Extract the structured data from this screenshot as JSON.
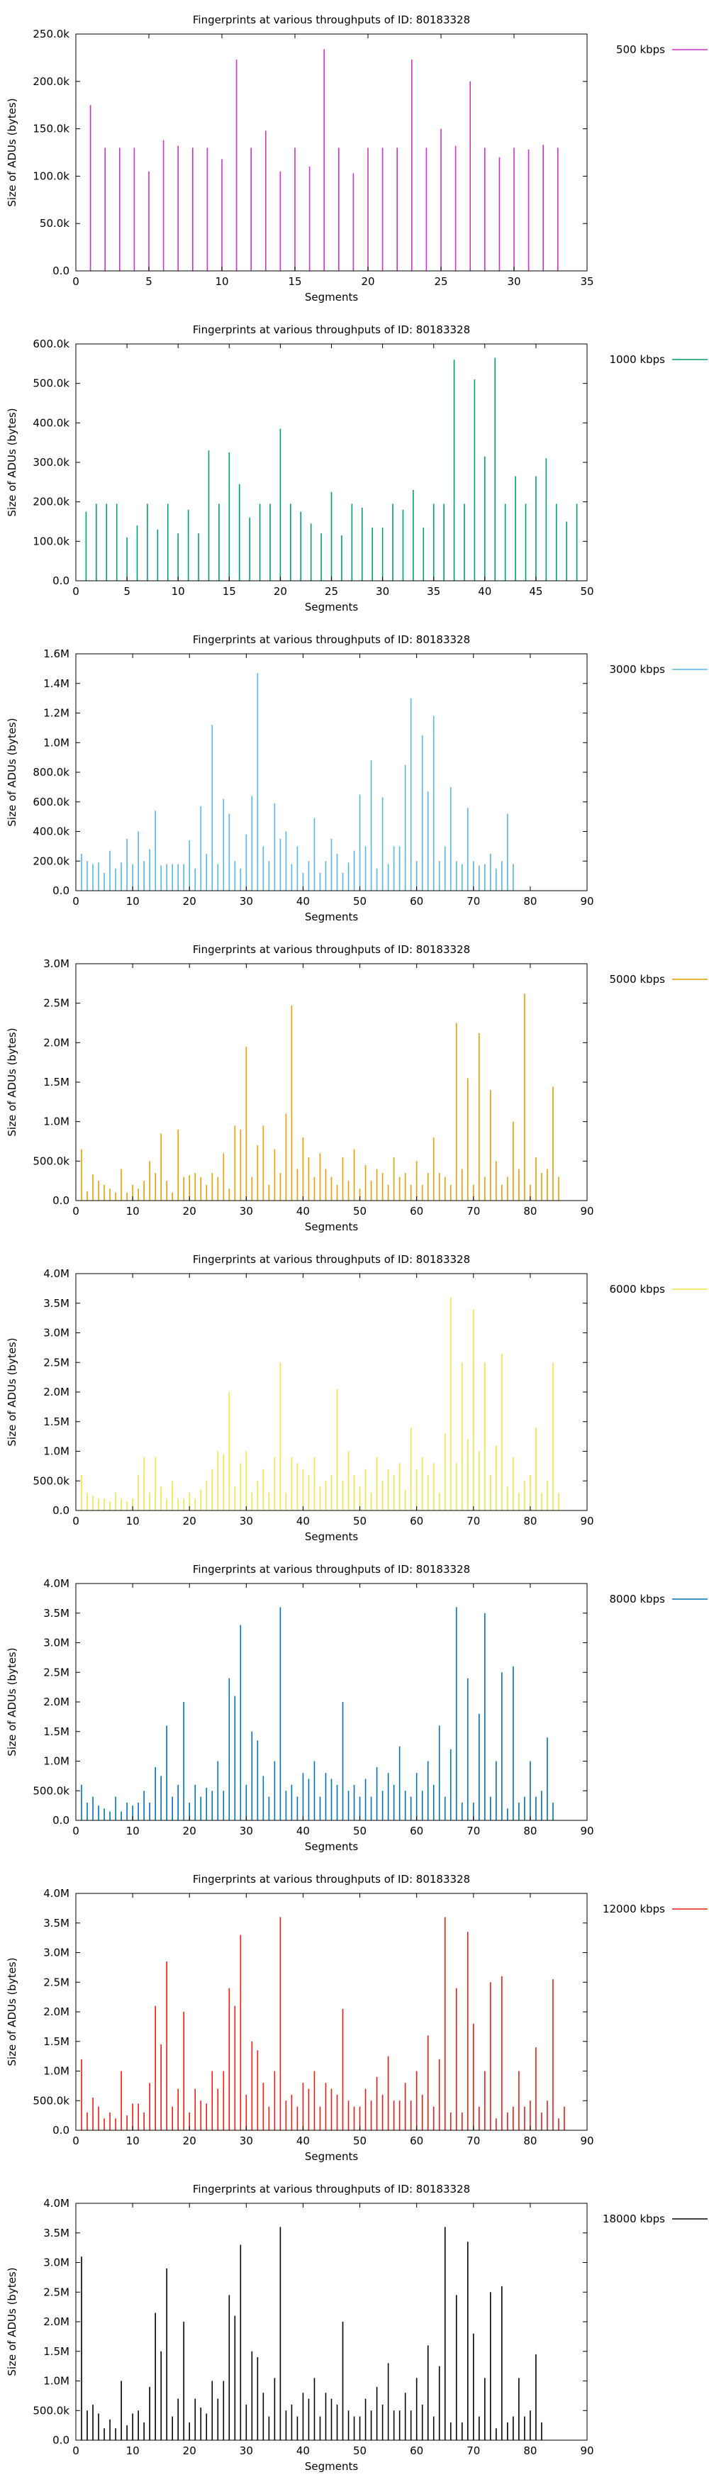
{
  "chart_data": [
    {
      "type": "bar",
      "title": "Fingerprints at various throughputs of ID: 80183328",
      "xlabel": "Segments",
      "ylabel": "Size of ADUs (bytes)",
      "series": [
        {
          "name": "500 kbps",
          "color": "#cc33cc"
        }
      ],
      "xlim": [
        0,
        35
      ],
      "ylim": [
        0,
        250000
      ],
      "xticks": [
        "0",
        "5",
        "10",
        "15",
        "20",
        "25",
        "30",
        "35"
      ],
      "yticks": [
        "0.0",
        "50.0k",
        "100.0k",
        "150.0k",
        "200.0k",
        "250.0k"
      ],
      "values": [
        175000,
        130000,
        130000,
        130000,
        105000,
        138000,
        132000,
        130000,
        130000,
        118000,
        223000,
        130000,
        148000,
        105000,
        130000,
        110000,
        234000,
        130000,
        103000,
        130000,
        130000,
        130000,
        223000,
        130000,
        150000,
        132000,
        200000,
        130000,
        120000,
        130000,
        128000,
        133000,
        130000
      ]
    },
    {
      "type": "bar",
      "title": "Fingerprints at various throughputs of ID: 80183328",
      "xlabel": "Segments",
      "ylabel": "Size of ADUs (bytes)",
      "series": [
        {
          "name": "1000 kbps",
          "color": "#009e73"
        }
      ],
      "xlim": [
        0,
        50
      ],
      "ylim": [
        0,
        600000
      ],
      "xticks": [
        "0",
        "5",
        "10",
        "15",
        "20",
        "25",
        "30",
        "35",
        "40",
        "45",
        "50"
      ],
      "yticks": [
        "0.0",
        "100.0k",
        "200.0k",
        "300.0k",
        "400.0k",
        "500.0k",
        "600.0k"
      ],
      "values": [
        175000,
        195000,
        195000,
        195000,
        110000,
        140000,
        195000,
        130000,
        195000,
        120000,
        180000,
        120000,
        330000,
        195000,
        325000,
        245000,
        160000,
        195000,
        195000,
        385000,
        195000,
        175000,
        145000,
        120000,
        225000,
        115000,
        195000,
        185000,
        135000,
        135000,
        195000,
        180000,
        230000,
        135000,
        195000,
        195000,
        560000,
        195000,
        510000,
        315000,
        565000,
        195000,
        265000,
        195000,
        265000,
        310000,
        195000,
        150000,
        195000
      ]
    },
    {
      "type": "bar",
      "title": "Fingerprints at various throughputs of ID: 80183328",
      "xlabel": "Segments",
      "ylabel": "Size of ADUs (bytes)",
      "series": [
        {
          "name": "3000 kbps",
          "color": "#56b4e9"
        }
      ],
      "xlim": [
        0,
        90
      ],
      "ylim": [
        0,
        1600000
      ],
      "xticks": [
        "0",
        "10",
        "20",
        "30",
        "40",
        "50",
        "60",
        "70",
        "80",
        "90"
      ],
      "yticks": [
        "0.0",
        "200.0k",
        "400.0k",
        "600.0k",
        "800.0k",
        "1.0M",
        "1.2M",
        "1.4M",
        "1.6M"
      ],
      "values": [
        250000,
        200000,
        180000,
        190000,
        120000,
        270000,
        150000,
        190000,
        350000,
        180000,
        400000,
        200000,
        280000,
        540000,
        170000,
        180000,
        180000,
        180000,
        180000,
        340000,
        150000,
        570000,
        250000,
        1120000,
        180000,
        620000,
        520000,
        200000,
        150000,
        380000,
        640000,
        1470000,
        300000,
        200000,
        590000,
        350000,
        400000,
        180000,
        300000,
        120000,
        200000,
        490000,
        120000,
        200000,
        350000,
        250000,
        120000,
        190000,
        270000,
        650000,
        300000,
        880000,
        150000,
        630000,
        180000,
        300000,
        300000,
        850000,
        1300000,
        200000,
        1050000,
        670000,
        1180000,
        200000,
        300000,
        700000,
        200000,
        180000,
        560000,
        200000,
        170000,
        180000,
        250000,
        150000,
        200000,
        520000,
        180000
      ]
    },
    {
      "type": "bar",
      "title": "Fingerprints at various throughputs of ID: 80183328",
      "xlabel": "Segments",
      "ylabel": "Size of ADUs (bytes)",
      "series": [
        {
          "name": "5000 kbps",
          "color": "#e69f00"
        }
      ],
      "xlim": [
        0,
        90
      ],
      "ylim": [
        0,
        3000000
      ],
      "xticks": [
        "0",
        "10",
        "20",
        "30",
        "40",
        "50",
        "60",
        "70",
        "80",
        "90"
      ],
      "yticks": [
        "0.0",
        "500.0k",
        "1.0M",
        "1.5M",
        "2.0M",
        "2.5M",
        "3.0M"
      ],
      "values": [
        650000,
        120000,
        330000,
        250000,
        200000,
        150000,
        100000,
        400000,
        100000,
        200000,
        150000,
        250000,
        500000,
        350000,
        850000,
        250000,
        100000,
        900000,
        300000,
        320000,
        350000,
        300000,
        200000,
        350000,
        300000,
        600000,
        150000,
        950000,
        900000,
        1950000,
        300000,
        700000,
        950000,
        200000,
        650000,
        350000,
        1100000,
        2470000,
        400000,
        800000,
        550000,
        300000,
        600000,
        400000,
        300000,
        200000,
        550000,
        250000,
        650000,
        150000,
        450000,
        250000,
        400000,
        350000,
        200000,
        550000,
        300000,
        350000,
        200000,
        500000,
        200000,
        350000,
        800000,
        350000,
        300000,
        200000,
        2250000,
        400000,
        1550000,
        200000,
        2120000,
        300000,
        1400000,
        500000,
        200000,
        300000,
        1000000,
        400000,
        2620000,
        200000,
        550000,
        350000,
        400000,
        1440000,
        300000
      ]
    },
    {
      "type": "bar",
      "title": "Fingerprints at various throughputs of ID: 80183328",
      "xlabel": "Segments",
      "ylabel": "Size of ADUs (bytes)",
      "series": [
        {
          "name": "6000 kbps",
          "color": "#f0e442"
        }
      ],
      "xlim": [
        0,
        90
      ],
      "ylim": [
        0,
        4000000
      ],
      "xticks": [
        "0",
        "10",
        "20",
        "30",
        "40",
        "50",
        "60",
        "70",
        "80",
        "90"
      ],
      "yticks": [
        "0.0",
        "500.0k",
        "1.0M",
        "1.5M",
        "2.0M",
        "2.5M",
        "3.0M",
        "3.5M",
        "4.0M"
      ],
      "values": [
        600000,
        300000,
        250000,
        200000,
        200000,
        150000,
        300000,
        200000,
        150000,
        200000,
        600000,
        900000,
        300000,
        900000,
        400000,
        200000,
        500000,
        200000,
        200000,
        300000,
        200000,
        350000,
        500000,
        700000,
        1000000,
        950000,
        2000000,
        400000,
        800000,
        1000000,
        300000,
        500000,
        700000,
        300000,
        900000,
        2500000,
        300000,
        900000,
        800000,
        700000,
        600000,
        900000,
        400000,
        500000,
        600000,
        2050000,
        500000,
        1000000,
        600000,
        400000,
        700000,
        300000,
        900000,
        500000,
        700000,
        600000,
        800000,
        350000,
        1400000,
        700000,
        900000,
        600000,
        800000,
        300000,
        1300000,
        3600000,
        800000,
        2500000,
        1200000,
        3400000,
        1000000,
        2500000,
        600000,
        1100000,
        2650000,
        400000,
        900000,
        300000,
        500000,
        600000,
        1400000,
        300000,
        500000,
        2500000,
        300000
      ]
    },
    {
      "type": "bar",
      "title": "Fingerprints at various throughputs of ID: 80183328",
      "xlabel": "Segments",
      "ylabel": "Size of ADUs (bytes)",
      "series": [
        {
          "name": "8000 kbps",
          "color": "#0072b2"
        }
      ],
      "xlim": [
        0,
        90
      ],
      "ylim": [
        0,
        4000000
      ],
      "xticks": [
        "0",
        "10",
        "20",
        "30",
        "40",
        "50",
        "60",
        "70",
        "80",
        "90"
      ],
      "yticks": [
        "0.0",
        "500.0k",
        "1.0M",
        "1.5M",
        "2.0M",
        "2.5M",
        "3.0M",
        "3.5M",
        "4.0M"
      ],
      "values": [
        600000,
        300000,
        400000,
        250000,
        200000,
        150000,
        400000,
        150000,
        300000,
        250000,
        300000,
        500000,
        300000,
        900000,
        750000,
        1600000,
        400000,
        600000,
        2000000,
        300000,
        600000,
        400000,
        550000,
        500000,
        1000000,
        500000,
        2400000,
        2100000,
        3300000,
        600000,
        1500000,
        1350000,
        750000,
        400000,
        1000000,
        3600000,
        500000,
        600000,
        400000,
        800000,
        700000,
        1000000,
        400000,
        800000,
        700000,
        600000,
        2000000,
        500000,
        600000,
        400000,
        700000,
        400000,
        900000,
        500000,
        800000,
        600000,
        1250000,
        500000,
        400000,
        800000,
        500000,
        1000000,
        600000,
        1600000,
        400000,
        1200000,
        3600000,
        300000,
        2400000,
        300000,
        1800000,
        3500000,
        400000,
        1000000,
        2500000,
        200000,
        2600000,
        300000,
        400000,
        1000000,
        400000,
        500000,
        1400000,
        300000
      ]
    },
    {
      "type": "bar",
      "title": "Fingerprints at various throughputs of ID: 80183328",
      "xlabel": "Segments",
      "ylabel": "Size of ADUs (bytes)",
      "series": [
        {
          "name": "12000 kbps",
          "color": "#e51e10"
        }
      ],
      "xlim": [
        0,
        90
      ],
      "ylim": [
        0,
        4000000
      ],
      "xticks": [
        "0",
        "10",
        "20",
        "30",
        "40",
        "50",
        "60",
        "70",
        "80",
        "90"
      ],
      "yticks": [
        "0.0",
        "500.0k",
        "1.0M",
        "1.5M",
        "2.0M",
        "2.5M",
        "3.0M",
        "3.5M",
        "4.0M"
      ],
      "values": [
        1200000,
        300000,
        550000,
        400000,
        200000,
        300000,
        200000,
        1000000,
        250000,
        450000,
        450000,
        300000,
        800000,
        2100000,
        1450000,
        2850000,
        400000,
        700000,
        2000000,
        300000,
        700000,
        500000,
        450000,
        1000000,
        700000,
        1000000,
        2400000,
        2100000,
        3300000,
        600000,
        1500000,
        1350000,
        800000,
        400000,
        1000000,
        3600000,
        500000,
        600000,
        400000,
        800000,
        700000,
        1000000,
        400000,
        800000,
        700000,
        600000,
        2050000,
        500000,
        400000,
        400000,
        700000,
        500000,
        900000,
        600000,
        1250000,
        500000,
        500000,
        800000,
        500000,
        1000000,
        600000,
        1600000,
        400000,
        1200000,
        3600000,
        300000,
        2400000,
        300000,
        3350000,
        1800000,
        400000,
        1000000,
        2500000,
        200000,
        2600000,
        300000,
        400000,
        1000000,
        400000,
        500000,
        1400000,
        300000,
        500000,
        2550000,
        200000,
        400000
      ]
    },
    {
      "type": "bar",
      "title": "Fingerprints at various throughputs of ID: 80183328",
      "xlabel": "Segments",
      "ylabel": "Size of ADUs (bytes)",
      "series": [
        {
          "name": "18000 kbps",
          "color": "#000000"
        }
      ],
      "xlim": [
        0,
        90
      ],
      "ylim": [
        0,
        4000000
      ],
      "xticks": [
        "0",
        "10",
        "20",
        "30",
        "40",
        "50",
        "60",
        "70",
        "80",
        "90"
      ],
      "yticks": [
        "0.0",
        "500.0k",
        "1.0M",
        "1.5M",
        "2.0M",
        "2.5M",
        "3.0M",
        "3.5M",
        "4.0M"
      ],
      "values": [
        3100000,
        500000,
        600000,
        450000,
        200000,
        350000,
        200000,
        1000000,
        250000,
        450000,
        500000,
        300000,
        900000,
        2150000,
        1500000,
        2900000,
        400000,
        700000,
        2000000,
        300000,
        700000,
        550000,
        450000,
        1000000,
        700000,
        1000000,
        2450000,
        2100000,
        3300000,
        600000,
        1500000,
        1400000,
        800000,
        400000,
        1050000,
        3600000,
        500000,
        600000,
        400000,
        800000,
        700000,
        1050000,
        400000,
        800000,
        700000,
        600000,
        2000000,
        500000,
        400000,
        400000,
        700000,
        500000,
        900000,
        600000,
        1300000,
        500000,
        500000,
        800000,
        500000,
        1050000,
        600000,
        1600000,
        400000,
        1250000,
        3600000,
        300000,
        2450000,
        300000,
        3350000,
        1800000,
        400000,
        1050000,
        2500000,
        200000,
        2600000,
        300000,
        400000,
        1050000,
        400000,
        500000,
        1450000,
        300000
      ]
    }
  ]
}
